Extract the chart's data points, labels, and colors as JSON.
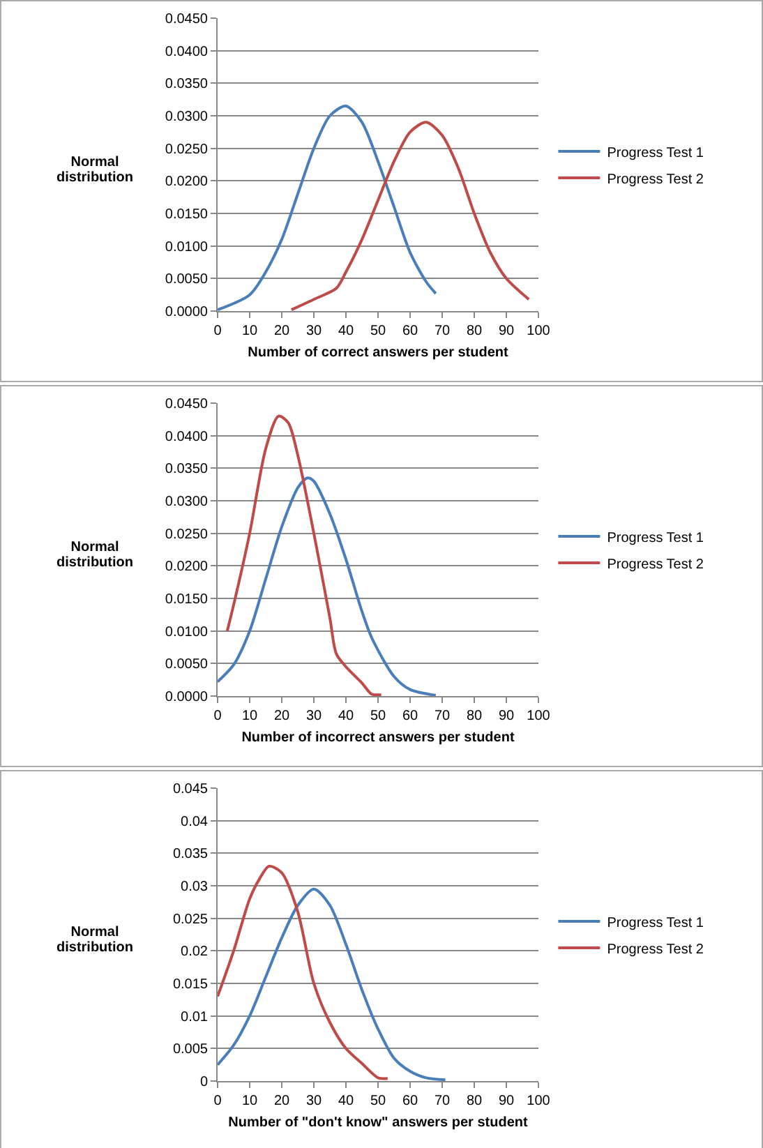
{
  "chart_data": [
    {
      "type": "line",
      "xlabel": "Number of correct answers per student",
      "ylabel": "Normal distribution",
      "xlim": [
        0,
        100
      ],
      "xticks": [
        0,
        10,
        20,
        30,
        40,
        50,
        60,
        70,
        80,
        90,
        100
      ],
      "ylim": [
        0,
        0.045
      ],
      "yticks": [
        {
          "value": 0,
          "label": "0.0000"
        },
        {
          "value": 0.005,
          "label": "0.0050"
        },
        {
          "value": 0.01,
          "label": "0.0100"
        },
        {
          "value": 0.015,
          "label": "0.0150"
        },
        {
          "value": 0.02,
          "label": "0.0200"
        },
        {
          "value": 0.025,
          "label": "0.0250"
        },
        {
          "value": 0.03,
          "label": "0.0300"
        },
        {
          "value": 0.035,
          "label": "0.0350"
        },
        {
          "value": 0.04,
          "label": "0.0400"
        },
        {
          "value": 0.045,
          "label": "0.0450"
        }
      ],
      "grid": "y",
      "legend": "right",
      "marker": "none",
      "line_style": "solid",
      "series": [
        {
          "name": "Progress Test 1",
          "color": "#4a7ebb",
          "x": [
            0,
            10,
            15,
            20,
            25,
            30,
            35,
            40,
            45,
            50,
            55,
            60,
            65,
            68
          ],
          "values": [
            0.0002,
            0.0025,
            0.006,
            0.011,
            0.018,
            0.025,
            0.03,
            0.0315,
            0.029,
            0.023,
            0.016,
            0.009,
            0.0045,
            0.0027
          ]
        },
        {
          "name": "Progress Test 2",
          "color": "#be4b48",
          "x": [
            23,
            30,
            37,
            40,
            45,
            50,
            55,
            60,
            65,
            70,
            75,
            80,
            85,
            90,
            97
          ],
          "values": [
            0.0002,
            0.0018,
            0.0035,
            0.006,
            0.011,
            0.017,
            0.023,
            0.0275,
            0.029,
            0.027,
            0.022,
            0.015,
            0.009,
            0.005,
            0.0018
          ]
        }
      ]
    },
    {
      "type": "line",
      "xlabel": "Number of incorrect answers per student",
      "ylabel": "Normal distribution",
      "xlim": [
        0,
        100
      ],
      "xticks": [
        0,
        10,
        20,
        30,
        40,
        50,
        60,
        70,
        80,
        90,
        100
      ],
      "ylim": [
        0,
        0.045
      ],
      "yticks": [
        {
          "value": 0,
          "label": "0.0000"
        },
        {
          "value": 0.005,
          "label": "0.0050"
        },
        {
          "value": 0.01,
          "label": "0.0100"
        },
        {
          "value": 0.015,
          "label": "0.0150"
        },
        {
          "value": 0.02,
          "label": "0.0200"
        },
        {
          "value": 0.025,
          "label": "0.0250"
        },
        {
          "value": 0.03,
          "label": "0.0300"
        },
        {
          "value": 0.035,
          "label": "0.0350"
        },
        {
          "value": 0.04,
          "label": "0.0400"
        },
        {
          "value": 0.045,
          "label": "0.0450"
        }
      ],
      "grid": "y",
      "legend": "right",
      "marker": "none",
      "line_style": "solid",
      "series": [
        {
          "name": "Progress Test 1",
          "color": "#4a7ebb",
          "x": [
            0,
            5,
            10,
            15,
            20,
            25,
            28,
            30,
            35,
            40,
            45,
            48,
            55,
            60,
            68
          ],
          "values": [
            0.0022,
            0.0048,
            0.01,
            0.018,
            0.026,
            0.032,
            0.0335,
            0.033,
            0.028,
            0.021,
            0.013,
            0.009,
            0.003,
            0.001,
            0.0001
          ]
        },
        {
          "name": "Progress Test 2",
          "color": "#be4b48",
          "x": [
            3,
            5,
            10,
            15,
            19,
            22,
            25,
            30,
            35,
            37,
            40,
            45,
            48,
            51
          ],
          "values": [
            0.01,
            0.014,
            0.025,
            0.038,
            0.043,
            0.042,
            0.037,
            0.025,
            0.012,
            0.0065,
            0.0045,
            0.002,
            0.0003,
            0.0002
          ]
        }
      ]
    },
    {
      "type": "line",
      "xlabel": "Number of \"don't know\" answers per student",
      "ylabel": "Normal distribution",
      "xlim": [
        0,
        100
      ],
      "xticks": [
        0,
        10,
        20,
        30,
        40,
        50,
        60,
        70,
        80,
        90,
        100
      ],
      "ylim": [
        0,
        0.045
      ],
      "yticks": [
        0,
        0.005,
        0.01,
        0.015,
        0.02,
        0.025,
        0.03,
        0.035,
        0.04,
        0.045
      ],
      "grid": "y",
      "legend": "right",
      "marker": "none",
      "line_style": "solid",
      "series": [
        {
          "name": "Progress Test 1",
          "color": "#4a7ebb",
          "x": [
            0,
            5,
            10,
            15,
            20,
            25,
            30,
            35,
            40,
            45,
            50,
            55,
            60,
            65,
            71
          ],
          "values": [
            0.0025,
            0.0055,
            0.01,
            0.016,
            0.022,
            0.027,
            0.0295,
            0.027,
            0.021,
            0.014,
            0.008,
            0.0035,
            0.0015,
            0.0005,
            0.0002
          ]
        },
        {
          "name": "Progress Test 2",
          "color": "#be4b48",
          "x": [
            0,
            5,
            10,
            13,
            16,
            20,
            25,
            30,
            35,
            40,
            45,
            50,
            53
          ],
          "values": [
            0.013,
            0.02,
            0.028,
            0.031,
            0.033,
            0.032,
            0.026,
            0.015,
            0.009,
            0.005,
            0.0027,
            0.0005,
            0.0004
          ]
        }
      ]
    }
  ]
}
